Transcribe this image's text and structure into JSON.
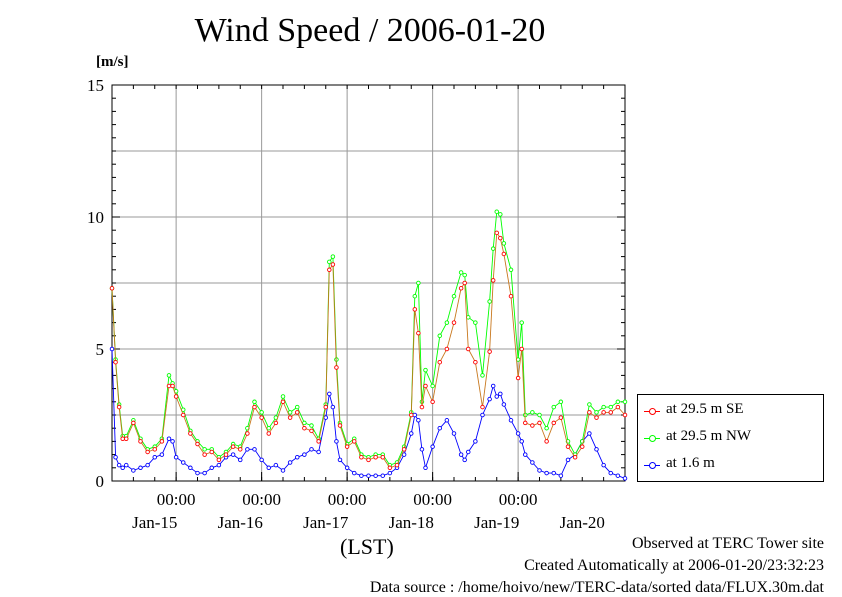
{
  "title": "Wind Speed / 2006-01-20",
  "unit_label": "[m/s]",
  "x_axis_label": "(LST)",
  "footer": {
    "line1": "Observed at TERC Tower site",
    "line2": "Created Automatically at 2006-01-20/23:32:23",
    "line3": "Data source : /home/hoivo/new/TERC-data/sorted  data/FLUX.30m.dat"
  },
  "chart_data": {
    "type": "line",
    "title": "Wind Speed / 2006-01-20",
    "ylabel": "[m/s]",
    "xlabel": "(LST)",
    "ylim": [
      0,
      15
    ],
    "yticks": [
      0,
      5,
      10,
      15
    ],
    "x_unit": "hours since 2006-01-14 18:00 LST",
    "xlim": [
      0,
      144
    ],
    "xticks_time": [
      {
        "hour": 18,
        "label": "00:00"
      },
      {
        "hour": 42,
        "label": "00:00"
      },
      {
        "hour": 66,
        "label": "00:00"
      },
      {
        "hour": 90,
        "label": "00:00"
      },
      {
        "hour": 114,
        "label": "00:00"
      }
    ],
    "xticks_date": [
      {
        "hour": 12,
        "label": "Jan-15"
      },
      {
        "hour": 36,
        "label": "Jan-16"
      },
      {
        "hour": 60,
        "label": "Jan-17"
      },
      {
        "hour": 84,
        "label": "Jan-18"
      },
      {
        "hour": 108,
        "label": "Jan-19"
      },
      {
        "hour": 132,
        "label": "Jan-20"
      }
    ],
    "grid": true,
    "legend_position": "right",
    "series": [
      {
        "name": "at 29.5 m SE",
        "color": "#ff0000",
        "x": [
          0,
          1,
          2,
          3,
          4,
          6,
          8,
          10,
          12,
          14,
          16,
          17,
          18,
          20,
          22,
          24,
          26,
          28,
          30,
          32,
          34,
          36,
          38,
          40,
          42,
          44,
          46,
          48,
          50,
          52,
          54,
          56,
          58,
          60,
          61,
          62,
          63,
          64,
          66,
          68,
          70,
          72,
          74,
          76,
          78,
          80,
          82,
          84,
          85,
          86,
          87,
          88,
          90,
          92,
          94,
          96,
          98,
          99,
          100,
          102,
          104,
          106,
          107,
          108,
          109,
          110,
          112,
          114,
          115,
          116,
          118,
          120,
          122,
          124,
          126,
          128,
          130,
          132,
          134,
          136,
          138,
          140,
          142,
          144
        ],
        "y": [
          7.3,
          4.5,
          2.8,
          1.6,
          1.6,
          2.2,
          1.5,
          1.1,
          1.2,
          1.5,
          3.6,
          3.6,
          3.2,
          2.5,
          1.8,
          1.4,
          1.0,
          1.1,
          0.8,
          1.0,
          1.3,
          1.2,
          1.8,
          2.8,
          2.4,
          1.8,
          2.2,
          3.0,
          2.4,
          2.6,
          2.0,
          1.9,
          1.5,
          2.8,
          8.0,
          8.2,
          4.3,
          2.1,
          1.3,
          1.5,
          0.9,
          0.8,
          0.9,
          0.9,
          0.5,
          0.6,
          1.2,
          2.5,
          6.5,
          5.6,
          2.8,
          3.6,
          3.0,
          4.5,
          5.0,
          6.0,
          7.3,
          7.5,
          5.0,
          4.5,
          2.8,
          4.9,
          7.6,
          9.4,
          9.2,
          8.6,
          7.0,
          3.9,
          5.0,
          2.2,
          2.1,
          2.2,
          1.5,
          2.2,
          2.4,
          1.3,
          0.9,
          1.3,
          2.6,
          2.4,
          2.6,
          2.6,
          2.8,
          2.5
        ]
      },
      {
        "name": "at 29.5 m NW",
        "color": "#00ff00",
        "x": [
          0,
          1,
          2,
          3,
          4,
          6,
          8,
          10,
          12,
          14,
          16,
          17,
          18,
          20,
          22,
          24,
          26,
          28,
          30,
          32,
          34,
          36,
          38,
          40,
          42,
          44,
          46,
          48,
          50,
          52,
          54,
          56,
          58,
          60,
          61,
          62,
          63,
          64,
          66,
          68,
          70,
          72,
          74,
          76,
          78,
          80,
          82,
          84,
          85,
          86,
          87,
          88,
          90,
          92,
          94,
          96,
          98,
          99,
          100,
          102,
          104,
          106,
          107,
          108,
          109,
          110,
          112,
          114,
          115,
          116,
          118,
          120,
          122,
          124,
          126,
          128,
          130,
          132,
          134,
          136,
          138,
          140,
          142,
          144
        ],
        "y": [
          7.3,
          4.6,
          2.9,
          1.7,
          1.7,
          2.3,
          1.6,
          1.2,
          1.3,
          1.6,
          4.0,
          3.7,
          3.4,
          2.7,
          1.9,
          1.5,
          1.2,
          1.2,
          0.9,
          1.1,
          1.4,
          1.3,
          2.0,
          3.0,
          2.6,
          2.0,
          2.4,
          3.2,
          2.6,
          2.8,
          2.2,
          2.1,
          1.6,
          2.9,
          8.3,
          8.5,
          4.6,
          2.2,
          1.4,
          1.6,
          1.0,
          0.9,
          1.0,
          1.0,
          0.6,
          0.7,
          1.3,
          2.6,
          7.0,
          7.5,
          3.0,
          4.2,
          3.6,
          5.5,
          6.0,
          7.0,
          7.9,
          7.8,
          6.2,
          6.0,
          4.0,
          6.8,
          8.8,
          10.2,
          10.1,
          9.0,
          8.0,
          4.6,
          6.0,
          2.5,
          2.6,
          2.5,
          2.0,
          2.8,
          3.0,
          1.5,
          1.0,
          1.5,
          2.9,
          2.6,
          2.8,
          2.8,
          3.0,
          3.0
        ]
      },
      {
        "name": "at 1.6 m",
        "color": "#0000ff",
        "x": [
          0,
          1,
          2,
          3,
          4,
          6,
          8,
          10,
          12,
          14,
          16,
          17,
          18,
          20,
          22,
          24,
          26,
          28,
          30,
          32,
          34,
          36,
          38,
          40,
          42,
          44,
          46,
          48,
          50,
          52,
          54,
          56,
          58,
          60,
          61,
          62,
          63,
          64,
          66,
          68,
          70,
          72,
          74,
          76,
          78,
          80,
          82,
          84,
          85,
          86,
          87,
          88,
          90,
          92,
          94,
          96,
          98,
          99,
          100,
          102,
          104,
          106,
          107,
          108,
          109,
          110,
          112,
          114,
          115,
          116,
          118,
          120,
          122,
          124,
          126,
          128,
          130,
          132,
          134,
          136,
          138,
          140,
          142,
          144
        ],
        "y": [
          5.0,
          0.9,
          0.6,
          0.5,
          0.6,
          0.4,
          0.5,
          0.6,
          0.9,
          1.0,
          1.6,
          1.5,
          0.9,
          0.7,
          0.5,
          0.3,
          0.3,
          0.5,
          0.6,
          0.9,
          1.0,
          0.8,
          1.2,
          1.2,
          0.8,
          0.5,
          0.6,
          0.4,
          0.7,
          0.9,
          1.0,
          1.2,
          1.1,
          2.4,
          3.3,
          2.8,
          1.5,
          0.8,
          0.5,
          0.3,
          0.2,
          0.2,
          0.2,
          0.2,
          0.3,
          0.5,
          1.0,
          1.8,
          2.5,
          2.3,
          1.2,
          0.5,
          1.3,
          2.0,
          2.3,
          1.8,
          1.0,
          0.8,
          1.1,
          1.5,
          2.5,
          3.1,
          3.6,
          3.2,
          3.3,
          2.9,
          2.3,
          1.8,
          1.5,
          1.0,
          0.7,
          0.4,
          0.3,
          0.3,
          0.2,
          0.8,
          1.0,
          1.5,
          1.8,
          1.2,
          0.6,
          0.3,
          0.2,
          0.1
        ]
      }
    ]
  }
}
